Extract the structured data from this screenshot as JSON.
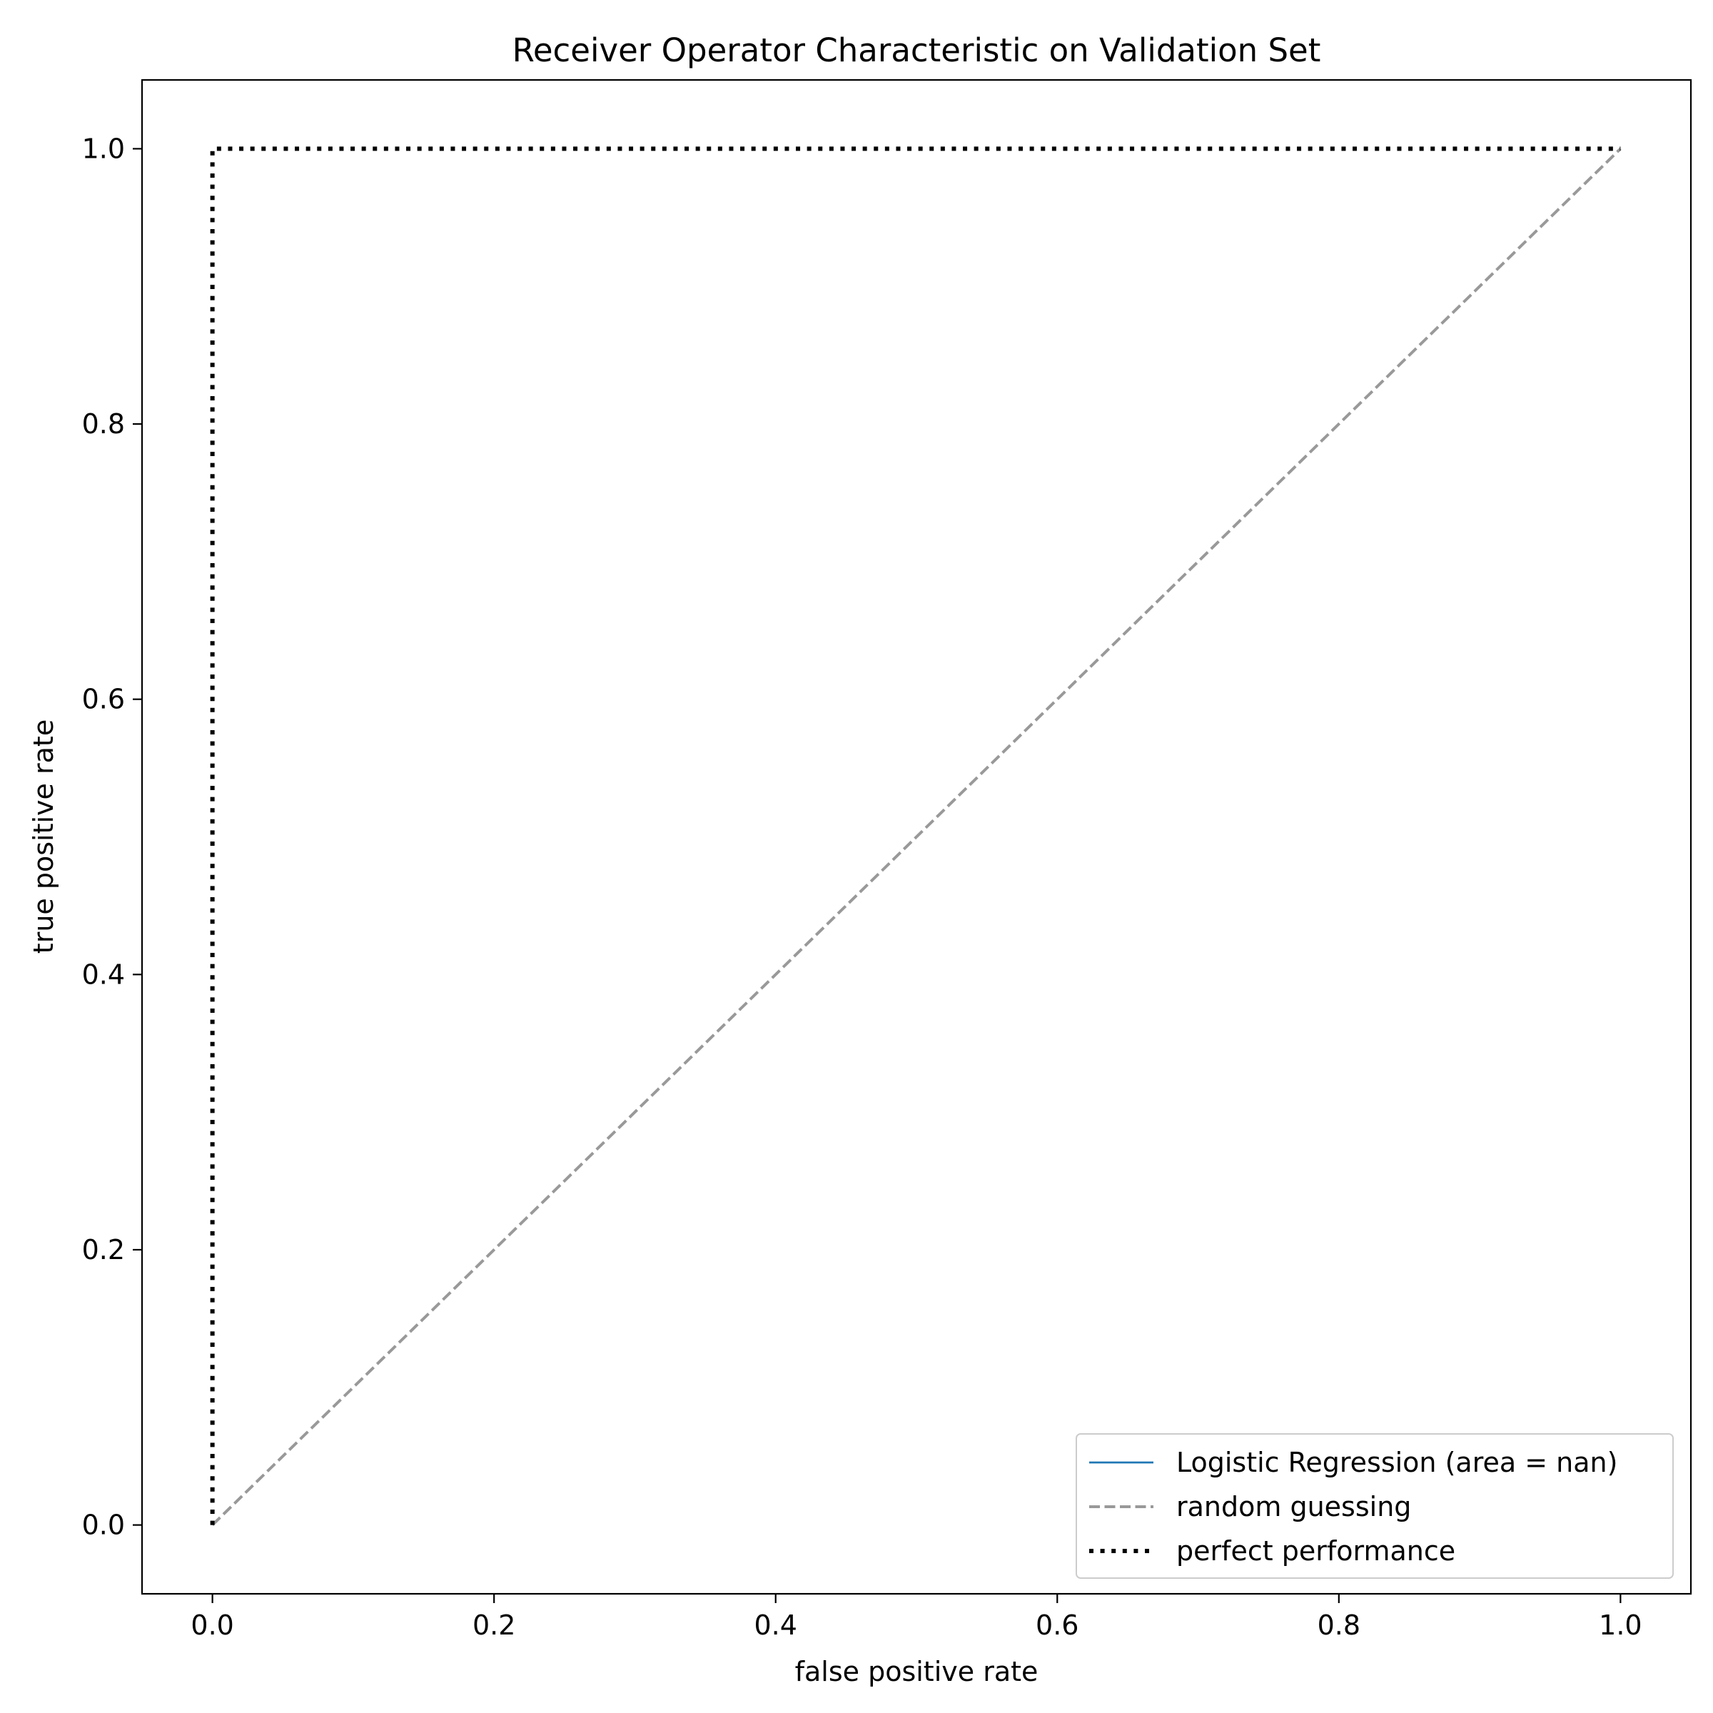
{
  "chart_data": {
    "type": "line",
    "title": "Receiver Operator Characteristic on Validation Set",
    "xlabel": "false positive rate",
    "ylabel": "true positive rate",
    "xlim": [
      -0.05,
      1.05
    ],
    "ylim": [
      -0.05,
      1.05
    ],
    "xticks": [
      0.0,
      0.2,
      0.4,
      0.6,
      0.8,
      1.0
    ],
    "yticks": [
      0.0,
      0.2,
      0.4,
      0.6,
      0.8,
      1.0
    ],
    "xtick_labels": [
      "0.0",
      "0.2",
      "0.4",
      "0.6",
      "0.8",
      "1.0"
    ],
    "ytick_labels": [
      "0.0",
      "0.2",
      "0.4",
      "0.6",
      "0.8",
      "1.0"
    ],
    "grid": false,
    "legend_position": "lower-right",
    "series": [
      {
        "name": "Logistic Regression (area = nan)",
        "style": "solid",
        "color": "#1f77b4",
        "x": [],
        "y": []
      },
      {
        "name": "random guessing",
        "style": "dashed",
        "color": "#999999",
        "x": [
          0,
          1
        ],
        "y": [
          0,
          1
        ]
      },
      {
        "name": "perfect performance",
        "style": "dotted",
        "color": "#000000",
        "x": [
          0,
          0,
          1
        ],
        "y": [
          0,
          1,
          1
        ]
      }
    ]
  }
}
